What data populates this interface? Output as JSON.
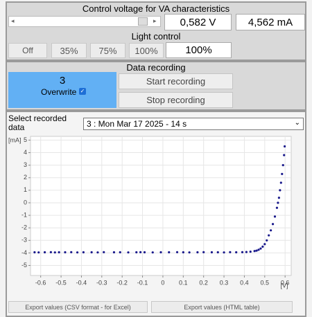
{
  "voltage_panel": {
    "title": "Control voltage for VA characteristics",
    "voltage": "0,582 V",
    "current": "4,562 mA"
  },
  "light_panel": {
    "title": "Light control",
    "buttons": [
      "Off",
      "35%",
      "75%",
      "100%"
    ],
    "value": "100%"
  },
  "recording_panel": {
    "title": "Data recording",
    "count": "3",
    "overwrite_label": "Overwrite",
    "start_button": "Start recording",
    "stop_button": "Stop recording"
  },
  "select": {
    "label": "Select recorded data",
    "selected": "3 : Mon Mar 17 2025 - 14 s"
  },
  "chart_data": {
    "type": "scatter",
    "x_label": "[V]",
    "y_label": "[mA]",
    "color": "#1a1a8c",
    "grid": true,
    "xlim": [
      -0.65,
      0.63
    ],
    "ylim": [
      -5.8,
      5.3
    ],
    "xticks": [
      -0.6,
      -0.5,
      -0.4,
      -0.3,
      -0.2,
      -0.1,
      0,
      0.1,
      0.2,
      0.3,
      0.4,
      0.5,
      0.6
    ],
    "yticks": [
      5,
      4,
      3,
      2,
      1,
      0,
      -1,
      -2,
      -3,
      -4,
      -5
    ],
    "x": [
      -0.63,
      -0.61,
      -0.58,
      -0.55,
      -0.53,
      -0.51,
      -0.48,
      -0.45,
      -0.42,
      -0.39,
      -0.35,
      -0.32,
      -0.29,
      -0.24,
      -0.21,
      -0.17,
      -0.13,
      -0.11,
      -0.09,
      -0.05,
      -0.01,
      0.03,
      0.07,
      0.1,
      0.13,
      0.17,
      0.2,
      0.24,
      0.27,
      0.3,
      0.33,
      0.36,
      0.39,
      0.41,
      0.43,
      0.45,
      0.46,
      0.47,
      0.48,
      0.49,
      0.5,
      0.51,
      0.52,
      0.53,
      0.54,
      0.55,
      0.56,
      0.565,
      0.57,
      0.575,
      0.58,
      0.585,
      0.59,
      0.595,
      0.598
    ],
    "values": [
      -3.95,
      -3.96,
      -3.95,
      -3.94,
      -3.96,
      -3.95,
      -3.95,
      -3.94,
      -3.96,
      -3.95,
      -3.95,
      -3.96,
      -3.94,
      -3.95,
      -3.95,
      -3.96,
      -3.95,
      -3.94,
      -3.95,
      -3.96,
      -3.95,
      -3.95,
      -3.94,
      -3.95,
      -3.96,
      -3.95,
      -3.94,
      -3.95,
      -3.95,
      -3.96,
      -3.94,
      -3.95,
      -3.94,
      -3.93,
      -3.9,
      -3.85,
      -3.82,
      -3.75,
      -3.65,
      -3.5,
      -3.3,
      -3.0,
      -2.6,
      -2.2,
      -1.7,
      -1.1,
      -0.4,
      0,
      0.4,
      1.0,
      1.6,
      2.3,
      3.0,
      3.8,
      4.5
    ]
  },
  "export_buttons": [
    "Export values (CSV format - for Excel)",
    "Export values (HTML table)"
  ]
}
